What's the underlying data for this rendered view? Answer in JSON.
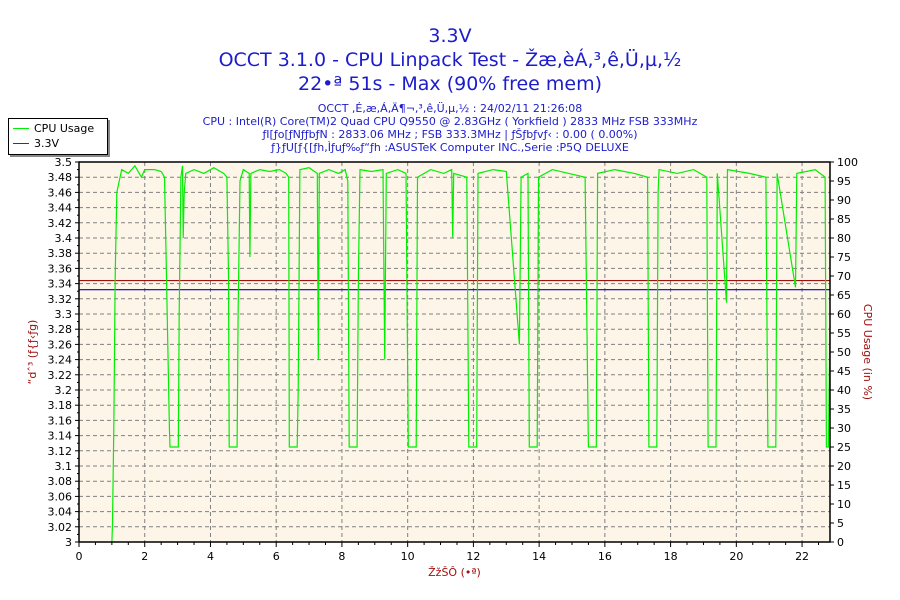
{
  "chart_data": {
    "type": "line",
    "title": "3.3V",
    "subtitle1": "OCCT 3.1.0 - CPU Linpack Test - Žæ,èÁ,³,ê,Ü,µ,½",
    "subtitle2": "22•ª 51s - Max (90% free mem)",
    "info": [
      "OCCT ,É,æ,Á,Ä¶¬,³,ê,Ü,µ,½ : 24/02/11 21:26:08",
      "CPU : Intel(R) Core(TM)2 Quad CPU Q9550 @ 2.83GHz ( Yorkfield ) 2833 MHz FSB 333MHz",
      "ƒI[ƒo[ƒNƒƒbƒN : 2833.06 MHz ; FSB 333.3MHz | ƒŠƒbƒvƒ‹ : 0.00 ( 0.00%)",
      "ƒ}ƒU[ƒ{[ƒh,Ìƒuƒ‰ƒ“ƒh :ASUSTeK Computer INC.,Serie :P5Q DELUXE"
    ],
    "xlabel": "ŽžŠÔ (•ª)",
    "ylabel": "“dˆ³ (ƒ{ƒ‹ƒg)",
    "y2label": "CPU Usage (in %)",
    "xlim": [
      0,
      22.85
    ],
    "ylim": [
      3.0,
      3.5
    ],
    "y2lim": [
      0,
      100
    ],
    "xticks": [
      0,
      2,
      4,
      6,
      8,
      10,
      12,
      14,
      16,
      18,
      20,
      22
    ],
    "yticks": [
      "3",
      "3.02",
      "3.04",
      "3.06",
      "3.08",
      "3.1",
      "3.12",
      "3.14",
      "3.16",
      "3.18",
      "3.2",
      "3.22",
      "3.24",
      "3.26",
      "3.28",
      "3.3",
      "3.32",
      "3.34",
      "3.36",
      "3.38",
      "3.4",
      "3.42",
      "3.44",
      "3.46",
      "3.48",
      "3.5"
    ],
    "y2ticks": [
      0,
      5,
      10,
      15,
      20,
      25,
      30,
      35,
      40,
      45,
      50,
      55,
      60,
      65,
      70,
      75,
      80,
      85,
      90,
      95,
      100
    ],
    "grid": true,
    "legend_position": "top-left-outside",
    "colors": {
      "cpu": "#00ee00",
      "volt": "#a01010",
      "ref": "#0000cc",
      "title": "#1c1ccc",
      "plot_bg": "#fdf6e8"
    },
    "series": [
      {
        "name": "CPU Usage",
        "axis": "right",
        "points": [
          [
            1.0,
            0
          ],
          [
            1.02,
            5
          ],
          [
            1.06,
            30
          ],
          [
            1.1,
            70
          ],
          [
            1.15,
            92
          ],
          [
            1.3,
            98
          ],
          [
            1.5,
            97
          ],
          [
            1.7,
            99
          ],
          [
            1.9,
            96
          ],
          [
            2.0,
            98
          ],
          [
            2.3,
            98
          ],
          [
            2.5,
            97.5
          ],
          [
            2.6,
            96
          ],
          [
            2.65,
            75
          ],
          [
            2.75,
            30
          ],
          [
            2.77,
            25
          ],
          [
            3.02,
            25
          ],
          [
            3.05,
            60
          ],
          [
            3.1,
            96
          ],
          [
            3.15,
            99
          ],
          [
            3.17,
            80
          ],
          [
            3.2,
            92
          ],
          [
            3.25,
            97
          ],
          [
            3.5,
            98
          ],
          [
            3.8,
            97
          ],
          [
            4.1,
            98.5
          ],
          [
            4.4,
            97
          ],
          [
            4.5,
            96
          ],
          [
            4.55,
            70
          ],
          [
            4.57,
            25
          ],
          [
            4.81,
            25
          ],
          [
            4.84,
            60
          ],
          [
            4.9,
            95
          ],
          [
            5.0,
            98
          ],
          [
            5.18,
            97
          ],
          [
            5.2,
            75
          ],
          [
            5.23,
            97
          ],
          [
            5.5,
            98
          ],
          [
            5.8,
            97.5
          ],
          [
            6.1,
            98
          ],
          [
            6.3,
            97
          ],
          [
            6.38,
            96
          ],
          [
            6.4,
            25
          ],
          [
            6.64,
            25
          ],
          [
            6.67,
            40
          ],
          [
            6.72,
            98
          ],
          [
            7.0,
            98.5
          ],
          [
            7.25,
            97
          ],
          [
            7.28,
            48
          ],
          [
            7.31,
            97
          ],
          [
            7.6,
            98
          ],
          [
            7.9,
            97
          ],
          [
            8.1,
            98
          ],
          [
            8.18,
            95
          ],
          [
            8.22,
            25
          ],
          [
            8.46,
            25
          ],
          [
            8.5,
            70
          ],
          [
            8.55,
            98
          ],
          [
            8.9,
            97.5
          ],
          [
            9.25,
            98
          ],
          [
            9.3,
            48
          ],
          [
            9.35,
            97
          ],
          [
            9.7,
            98
          ],
          [
            9.95,
            97
          ],
          [
            10.02,
            25
          ],
          [
            10.26,
            25
          ],
          [
            10.3,
            96
          ],
          [
            10.7,
            98
          ],
          [
            11.1,
            97
          ],
          [
            11.34,
            98
          ],
          [
            11.37,
            80
          ],
          [
            11.4,
            97
          ],
          [
            11.8,
            96
          ],
          [
            11.86,
            25
          ],
          [
            12.1,
            25
          ],
          [
            12.14,
            97
          ],
          [
            12.6,
            98
          ],
          [
            13.0,
            97.5
          ],
          [
            13.4,
            52
          ],
          [
            13.45,
            96
          ],
          [
            13.66,
            97
          ],
          [
            13.7,
            25
          ],
          [
            13.94,
            25
          ],
          [
            13.98,
            96
          ],
          [
            14.4,
            98
          ],
          [
            14.9,
            97
          ],
          [
            15.4,
            96
          ],
          [
            15.5,
            25
          ],
          [
            15.74,
            25
          ],
          [
            15.78,
            97
          ],
          [
            16.3,
            98
          ],
          [
            16.9,
            97
          ],
          [
            17.3,
            96
          ],
          [
            17.34,
            25
          ],
          [
            17.58,
            25
          ],
          [
            17.62,
            92
          ],
          [
            17.65,
            98
          ],
          [
            18.2,
            97
          ],
          [
            18.7,
            98
          ],
          [
            19.1,
            96
          ],
          [
            19.14,
            25
          ],
          [
            19.38,
            25
          ],
          [
            19.42,
            97
          ],
          [
            19.7,
            63
          ],
          [
            19.73,
            98
          ],
          [
            20.4,
            97
          ],
          [
            20.9,
            96
          ],
          [
            20.96,
            25
          ],
          [
            21.2,
            25
          ],
          [
            21.24,
            97
          ],
          [
            21.8,
            67
          ],
          [
            21.84,
            97
          ],
          [
            22.4,
            98
          ],
          [
            22.7,
            96
          ],
          [
            22.74,
            25
          ],
          [
            22.8,
            25
          ],
          [
            22.85,
            57
          ]
        ]
      },
      {
        "name": "3.3V",
        "axis": "left",
        "points": [
          [
            0,
            3.344
          ],
          [
            22.85,
            3.344
          ]
        ]
      }
    ],
    "reference_line": {
      "axis": "left",
      "value": 3.332
    }
  }
}
